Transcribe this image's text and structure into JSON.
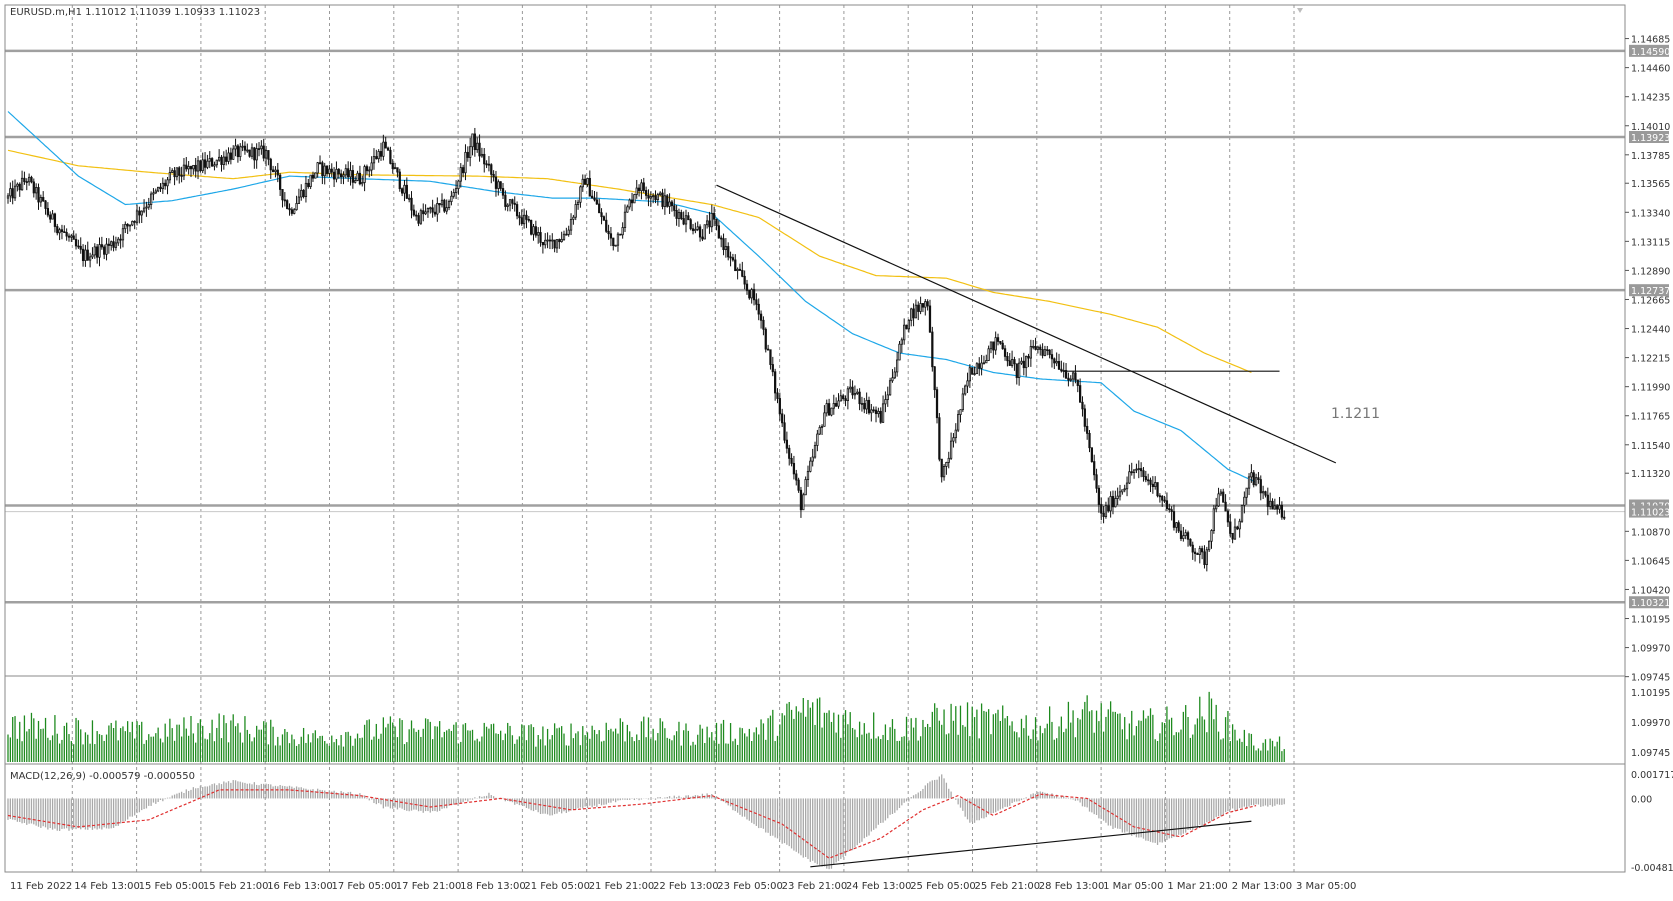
{
  "header": {
    "symbol_line": "EURUSD.m,H1  1.11012 1.11039 1.10933 1.11023"
  },
  "indicator_labels": {
    "macd": "MACD(12,26,9) -0.000579 -0.000550"
  },
  "annotations": {
    "level_1211": "1.1211"
  },
  "colors": {
    "background": "#ffffff",
    "grid": "#9a9a9a",
    "candle": "#111111",
    "sma_fast": "#1ea7e8",
    "sma_slow": "#f2c012",
    "volume": "#1e8a1e",
    "macd_hist": "#a8a8a8",
    "macd_signal": "#e03030",
    "level_line": "#a0a0a0",
    "trendline": "#111111"
  },
  "chart_data": {
    "type": "candlestick",
    "symbol": "EURUSD.m",
    "timeframe": "H1",
    "ylim": [
      1.0975,
      1.1479
    ],
    "y_ticks": [
      "1.14685",
      "1.14460",
      "1.14235",
      "1.14010",
      "1.13785",
      "1.13565",
      "1.13340",
      "1.13115",
      "1.12890",
      "1.12665",
      "1.12440",
      "1.12215",
      "1.11990",
      "1.11765",
      "1.11540",
      "1.11320",
      "1.10870",
      "1.10645",
      "1.10420",
      "1.10195",
      "1.09970",
      "1.09745"
    ],
    "x_tick_labels": [
      "11 Feb 2022",
      "14 Feb 13:00",
      "15 Feb 05:00",
      "15 Feb 21:00",
      "16 Feb 13:00",
      "17 Feb 05:00",
      "17 Feb 21:00",
      "18 Feb 13:00",
      "21 Feb 05:00",
      "21 Feb 21:00",
      "22 Feb 13:00",
      "23 Feb 05:00",
      "23 Feb 21:00",
      "24 Feb 13:00",
      "25 Feb 05:00",
      "25 Feb 21:00",
      "28 Feb 13:00",
      "1 Mar 05:00",
      "1 Mar 21:00",
      "2 Mar 13:00",
      "3 Mar 05:00"
    ],
    "horizontal_levels": [
      {
        "value": 1.1459,
        "label": "1.14590"
      },
      {
        "value": 1.13923,
        "label": "1.13923"
      },
      {
        "value": 1.12737,
        "label": "1.12737"
      },
      {
        "value": 1.1107,
        "label": "1.11070"
      },
      {
        "value": 1.11023,
        "label": "1.11023"
      },
      {
        "value": 1.10321,
        "label": "1.10321"
      }
    ],
    "price_anchors": [
      [
        0,
        1.1345
      ],
      [
        8,
        1.136
      ],
      [
        18,
        1.133
      ],
      [
        32,
        1.13
      ],
      [
        45,
        1.131
      ],
      [
        56,
        1.1335
      ],
      [
        70,
        1.1362
      ],
      [
        86,
        1.1372
      ],
      [
        96,
        1.138
      ],
      [
        110,
        1.138
      ],
      [
        120,
        1.1335
      ],
      [
        132,
        1.1368
      ],
      [
        150,
        1.136
      ],
      [
        160,
        1.1385
      ],
      [
        174,
        1.133
      ],
      [
        188,
        1.134
      ],
      [
        198,
        1.139
      ],
      [
        212,
        1.1343
      ],
      [
        230,
        1.1308
      ],
      [
        238,
        1.1318
      ],
      [
        246,
        1.136
      ],
      [
        258,
        1.1308
      ],
      [
        268,
        1.1355
      ],
      [
        278,
        1.1345
      ],
      [
        296,
        1.1318
      ],
      [
        300,
        1.1328
      ],
      [
        310,
        1.129
      ],
      [
        320,
        1.126
      ],
      [
        330,
        1.117
      ],
      [
        338,
        1.1108
      ],
      [
        348,
        1.118
      ],
      [
        360,
        1.1195
      ],
      [
        372,
        1.1175
      ],
      [
        384,
        1.1255
      ],
      [
        392,
        1.1265
      ],
      [
        398,
        1.1125
      ],
      [
        410,
        1.121
      ],
      [
        422,
        1.1235
      ],
      [
        430,
        1.121
      ],
      [
        438,
        1.123
      ],
      [
        444,
        1.1225
      ],
      [
        456,
        1.12
      ],
      [
        466,
        1.1098
      ],
      [
        480,
        1.1135
      ],
      [
        490,
        1.112
      ],
      [
        500,
        1.1085
      ],
      [
        510,
        1.1065
      ],
      [
        516,
        1.112
      ],
      [
        522,
        1.108
      ],
      [
        530,
        1.113
      ],
      [
        540,
        1.1102
      ],
      [
        544,
        1.1102
      ]
    ],
    "sma_fast": {
      "name": "",
      "points": [
        [
          0,
          1.1412
        ],
        [
          30,
          1.1362
        ],
        [
          50,
          1.134
        ],
        [
          70,
          1.1343
        ],
        [
          96,
          1.1352
        ],
        [
          120,
          1.1362
        ],
        [
          150,
          1.136
        ],
        [
          180,
          1.1358
        ],
        [
          208,
          1.135
        ],
        [
          232,
          1.1345
        ],
        [
          250,
          1.1345
        ],
        [
          280,
          1.1342
        ],
        [
          300,
          1.1333
        ],
        [
          320,
          1.13
        ],
        [
          340,
          1.1265
        ],
        [
          360,
          1.124
        ],
        [
          380,
          1.1225
        ],
        [
          400,
          1.122
        ],
        [
          420,
          1.121
        ],
        [
          440,
          1.1205
        ],
        [
          466,
          1.1202
        ],
        [
          480,
          1.118
        ],
        [
          500,
          1.1165
        ],
        [
          520,
          1.1135
        ],
        [
          532,
          1.1125
        ]
      ]
    },
    "sma_slow": {
      "name": "",
      "points": [
        [
          0,
          1.1382
        ],
        [
          30,
          1.137
        ],
        [
          60,
          1.1365
        ],
        [
          96,
          1.136
        ],
        [
          120,
          1.1365
        ],
        [
          150,
          1.1363
        ],
        [
          200,
          1.1362
        ],
        [
          230,
          1.136
        ],
        [
          260,
          1.1352
        ],
        [
          300,
          1.134
        ],
        [
          320,
          1.133
        ],
        [
          346,
          1.13
        ],
        [
          370,
          1.1285
        ],
        [
          400,
          1.1283
        ],
        [
          420,
          1.1272
        ],
        [
          444,
          1.1265
        ],
        [
          470,
          1.1255
        ],
        [
          490,
          1.1245
        ],
        [
          510,
          1.1225
        ],
        [
          530,
          1.121
        ]
      ]
    },
    "trendlines": [
      {
        "from": [
          302,
          1.1355
        ],
        "to": [
          566,
          1.114
        ]
      },
      {
        "label": "1.1211",
        "from": [
          450,
          1.1211
        ],
        "to": [
          542,
          1.1211
        ]
      }
    ],
    "volume_anchors": [
      [
        0,
        0.45
      ],
      [
        30,
        0.4
      ],
      [
        60,
        0.35
      ],
      [
        90,
        0.45
      ],
      [
        130,
        0.3
      ],
      [
        160,
        0.4
      ],
      [
        200,
        0.38
      ],
      [
        230,
        0.33
      ],
      [
        260,
        0.42
      ],
      [
        290,
        0.35
      ],
      [
        320,
        0.38
      ],
      [
        340,
        0.65
      ],
      [
        360,
        0.5
      ],
      [
        380,
        0.4
      ],
      [
        400,
        0.55
      ],
      [
        420,
        0.5
      ],
      [
        440,
        0.45
      ],
      [
        460,
        0.6
      ],
      [
        480,
        0.45
      ],
      [
        500,
        0.5
      ],
      [
        512,
        0.62
      ],
      [
        522,
        0.4
      ],
      [
        532,
        0.22
      ]
    ],
    "volume_axis_ticks": [
      "1.10195",
      "1.09970",
      "1.09745"
    ],
    "macd": {
      "name": "MACD(12,26,9)",
      "values": [
        -0.000579,
        -0.00055
      ],
      "axis_ticks": [
        "0.001717",
        "0.00",
        "-0.004815"
      ],
      "ylim": [
        -0.004815,
        0.001717
      ],
      "hist_anchors": [
        [
          0,
          -0.0015
        ],
        [
          20,
          -0.0022
        ],
        [
          45,
          -0.0021
        ],
        [
          60,
          -0.0005
        ],
        [
          80,
          0.0008
        ],
        [
          96,
          0.0012
        ],
        [
          120,
          0.0008
        ],
        [
          150,
          0.0003
        ],
        [
          160,
          -0.0006
        ],
        [
          180,
          -0.001
        ],
        [
          205,
          0.0003
        ],
        [
          230,
          -0.0012
        ],
        [
          260,
          -0.0002
        ],
        [
          300,
          0.0003
        ],
        [
          320,
          -0.002
        ],
        [
          340,
          -0.0042
        ],
        [
          350,
          -0.005
        ],
        [
          372,
          -0.0018
        ],
        [
          392,
          0.001
        ],
        [
          398,
          0.0016
        ],
        [
          410,
          -0.0018
        ],
        [
          420,
          -0.001
        ],
        [
          440,
          0.0005
        ],
        [
          456,
          -0.0002
        ],
        [
          470,
          -0.002
        ],
        [
          490,
          -0.0032
        ],
        [
          510,
          -0.0018
        ],
        [
          522,
          -0.0008
        ],
        [
          532,
          -0.0005
        ]
      ],
      "signal_anchors": [
        [
          0,
          -0.0012
        ],
        [
          30,
          -0.002
        ],
        [
          60,
          -0.0015
        ],
        [
          90,
          0.0006
        ],
        [
          120,
          0.0006
        ],
        [
          150,
          0.0002
        ],
        [
          180,
          -0.0006
        ],
        [
          210,
          0.0
        ],
        [
          240,
          -0.0008
        ],
        [
          270,
          -0.0004
        ],
        [
          300,
          0.0002
        ],
        [
          330,
          -0.0018
        ],
        [
          350,
          -0.0042
        ],
        [
          372,
          -0.0028
        ],
        [
          390,
          -0.0008
        ],
        [
          405,
          0.0002
        ],
        [
          420,
          -0.0012
        ],
        [
          440,
          0.0003
        ],
        [
          460,
          0.0
        ],
        [
          480,
          -0.002
        ],
        [
          500,
          -0.0027
        ],
        [
          520,
          -0.001
        ],
        [
          532,
          -0.0005
        ]
      ],
      "divergence_line": {
        "from": [
          342,
          -0.0048
        ],
        "to": [
          530,
          -0.0016
        ]
      }
    }
  }
}
